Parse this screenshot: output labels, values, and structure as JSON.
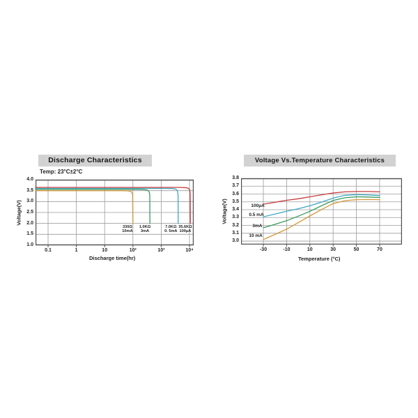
{
  "page": {
    "background": "#ffffff"
  },
  "colors": {
    "grid": "#9a9a9a",
    "border": "#4d4d4d",
    "banner_bg": "#d2d2d2",
    "text": "#1d1d1d"
  },
  "chart_data": [
    {
      "id": "discharge",
      "type": "line",
      "title": "Discharge Characteristics",
      "subtitle": "Temp: 23°C±2°C",
      "xlabel": "Discharge time(hr)",
      "ylabel": "Voltage(V)",
      "x_scale": "log",
      "xlim": [
        0.036,
        14060
      ],
      "ylim": [
        1.0,
        4.0
      ],
      "grid": true,
      "xticks": [
        {
          "v": 0.1,
          "label": "0.1"
        },
        {
          "v": 1,
          "label": "1"
        },
        {
          "v": 10,
          "label": "10"
        },
        {
          "v": 100,
          "label": "10²"
        },
        {
          "v": 1000,
          "label": "10³"
        },
        {
          "v": 10000,
          "label": "10⁴"
        }
      ],
      "yticks": [
        {
          "v": 4.0,
          "label": "4.0"
        },
        {
          "v": 3.5,
          "label": "3.5"
        },
        {
          "v": 3.0,
          "label": "3.0"
        },
        {
          "v": 2.5,
          "label": "2.5"
        },
        {
          "v": 2.0,
          "label": "2.0"
        },
        {
          "v": 1.5,
          "label": "1.5"
        },
        {
          "v": 1.0,
          "label": "1.0"
        }
      ],
      "series": [
        {
          "name": "330Ω 10mA",
          "color": "#d4973b",
          "points": [
            [
              0.036,
              3.5
            ],
            [
              40,
              3.5
            ],
            [
              65,
              3.49
            ],
            [
              85,
              3.46
            ],
            [
              93,
              3.41
            ],
            [
              97,
              3.3
            ],
            [
              100,
              2.0
            ]
          ]
        },
        {
          "name": "1.0KΩ 3mA",
          "color": "#3a9a5e",
          "points": [
            [
              0.036,
              3.56
            ],
            [
              150,
              3.56
            ],
            [
              250,
              3.55
            ],
            [
              330,
              3.52
            ],
            [
              375,
              3.45
            ],
            [
              395,
              3.3
            ],
            [
              400,
              2.0
            ]
          ]
        },
        {
          "name": "7.0KΩ 0.5mA",
          "color": "#3da8c5",
          "points": [
            [
              0.036,
              3.6
            ],
            [
              1500,
              3.6
            ],
            [
              2500,
              3.595
            ],
            [
              3300,
              3.57
            ],
            [
              3750,
              3.5
            ],
            [
              3950,
              3.3
            ],
            [
              4000,
              2.0
            ]
          ]
        },
        {
          "name": "35.6KΩ 100μA",
          "color": "#c53b3b",
          "points": [
            [
              0.036,
              3.65
            ],
            [
              4000,
              3.65
            ],
            [
              7000,
              3.64
            ],
            [
              9000,
              3.615
            ],
            [
              10200,
              3.55
            ],
            [
              10600,
              3.35
            ],
            [
              10800,
              2.0
            ]
          ]
        }
      ],
      "annotations": [
        {
          "lines": [
            "330Ω",
            "10mA"
          ],
          "x": 64,
          "y": 2.0
        },
        {
          "lines": [
            "1.0KΩ",
            "3mA"
          ],
          "x": 265,
          "y": 2.0
        },
        {
          "lines": [
            "7.0KΩ",
            "0. 5mA"
          ],
          "x": 2200,
          "y": 2.0
        },
        {
          "lines": [
            "35.6KΩ",
            "100μA"
          ],
          "x": 7100,
          "y": 2.0
        }
      ]
    },
    {
      "id": "voltage-vs-temperature",
      "type": "line",
      "title": "Voltage Vs.Temperature Characteristics",
      "subtitle": "",
      "xlabel": "Temperature (°C)",
      "ylabel": "Voltage(V)",
      "x_scale": "linear",
      "xlim": [
        -49.2,
        89.2
      ],
      "ylim": [
        2.956,
        3.8
      ],
      "grid": true,
      "xticks": [
        {
          "v": -30,
          "label": "-30"
        },
        {
          "v": -10,
          "label": "-10"
        },
        {
          "v": 10,
          "label": "10"
        },
        {
          "v": 30,
          "label": "30"
        },
        {
          "v": 50,
          "label": "50"
        },
        {
          "v": 70,
          "label": "70"
        }
      ],
      "yticks": [
        {
          "v": 3.8,
          "label": "3.8"
        },
        {
          "v": 3.7,
          "label": "3.7"
        },
        {
          "v": 3.6,
          "label": "3.6"
        },
        {
          "v": 3.5,
          "label": "3.5"
        },
        {
          "v": 3.4,
          "label": "3.4"
        },
        {
          "v": 3.3,
          "label": "3.3"
        },
        {
          "v": 3.2,
          "label": "3.2"
        },
        {
          "v": 3.1,
          "label": "3.1"
        },
        {
          "v": 3.0,
          "label": "3.0"
        }
      ],
      "series": [
        {
          "name": "10 mA",
          "color": "#d4973b",
          "points": [
            [
              -30,
              3.02
            ],
            [
              -20,
              3.085
            ],
            [
              -10,
              3.152
            ],
            [
              0,
              3.235
            ],
            [
              10,
              3.32
            ],
            [
              20,
              3.402
            ],
            [
              30,
              3.478
            ],
            [
              40,
              3.515
            ],
            [
              50,
              3.528
            ],
            [
              60,
              3.53
            ],
            [
              70,
              3.528
            ]
          ]
        },
        {
          "name": "3mA",
          "color": "#3a9a5e",
          "points": [
            [
              -30,
              3.17
            ],
            [
              -20,
              3.214
            ],
            [
              -10,
              3.26
            ],
            [
              0,
              3.318
            ],
            [
              10,
              3.38
            ],
            [
              20,
              3.45
            ],
            [
              30,
              3.518
            ],
            [
              40,
              3.552
            ],
            [
              50,
              3.565
            ],
            [
              60,
              3.562
            ],
            [
              70,
              3.556
            ]
          ]
        },
        {
          "name": "0.5 mA",
          "color": "#3da8c5",
          "points": [
            [
              -30,
              3.31
            ],
            [
              -20,
              3.345
            ],
            [
              -10,
              3.38
            ],
            [
              0,
              3.413
            ],
            [
              10,
              3.45
            ],
            [
              20,
              3.497
            ],
            [
              30,
              3.548
            ],
            [
              40,
              3.583
            ],
            [
              50,
              3.592
            ],
            [
              60,
              3.588
            ],
            [
              70,
              3.58
            ]
          ]
        },
        {
          "name": "100μA",
          "color": "#c53b3b",
          "points": [
            [
              -30,
              3.47
            ],
            [
              -20,
              3.495
            ],
            [
              -10,
              3.52
            ],
            [
              0,
              3.54
            ],
            [
              10,
              3.565
            ],
            [
              20,
              3.59
            ],
            [
              30,
              3.613
            ],
            [
              40,
              3.628
            ],
            [
              50,
              3.632
            ],
            [
              60,
              3.632
            ],
            [
              70,
              3.628
            ]
          ]
        }
      ],
      "annotations": [
        {
          "text": "100μA",
          "x": -40.6,
          "y": 3.444
        },
        {
          "text": "0.5 mA",
          "x": -42.4,
          "y": 3.329
        },
        {
          "text": "3mA",
          "x": -39.4,
          "y": 3.187
        },
        {
          "text": "10 mA",
          "x": -42.4,
          "y": 3.062
        }
      ]
    }
  ]
}
